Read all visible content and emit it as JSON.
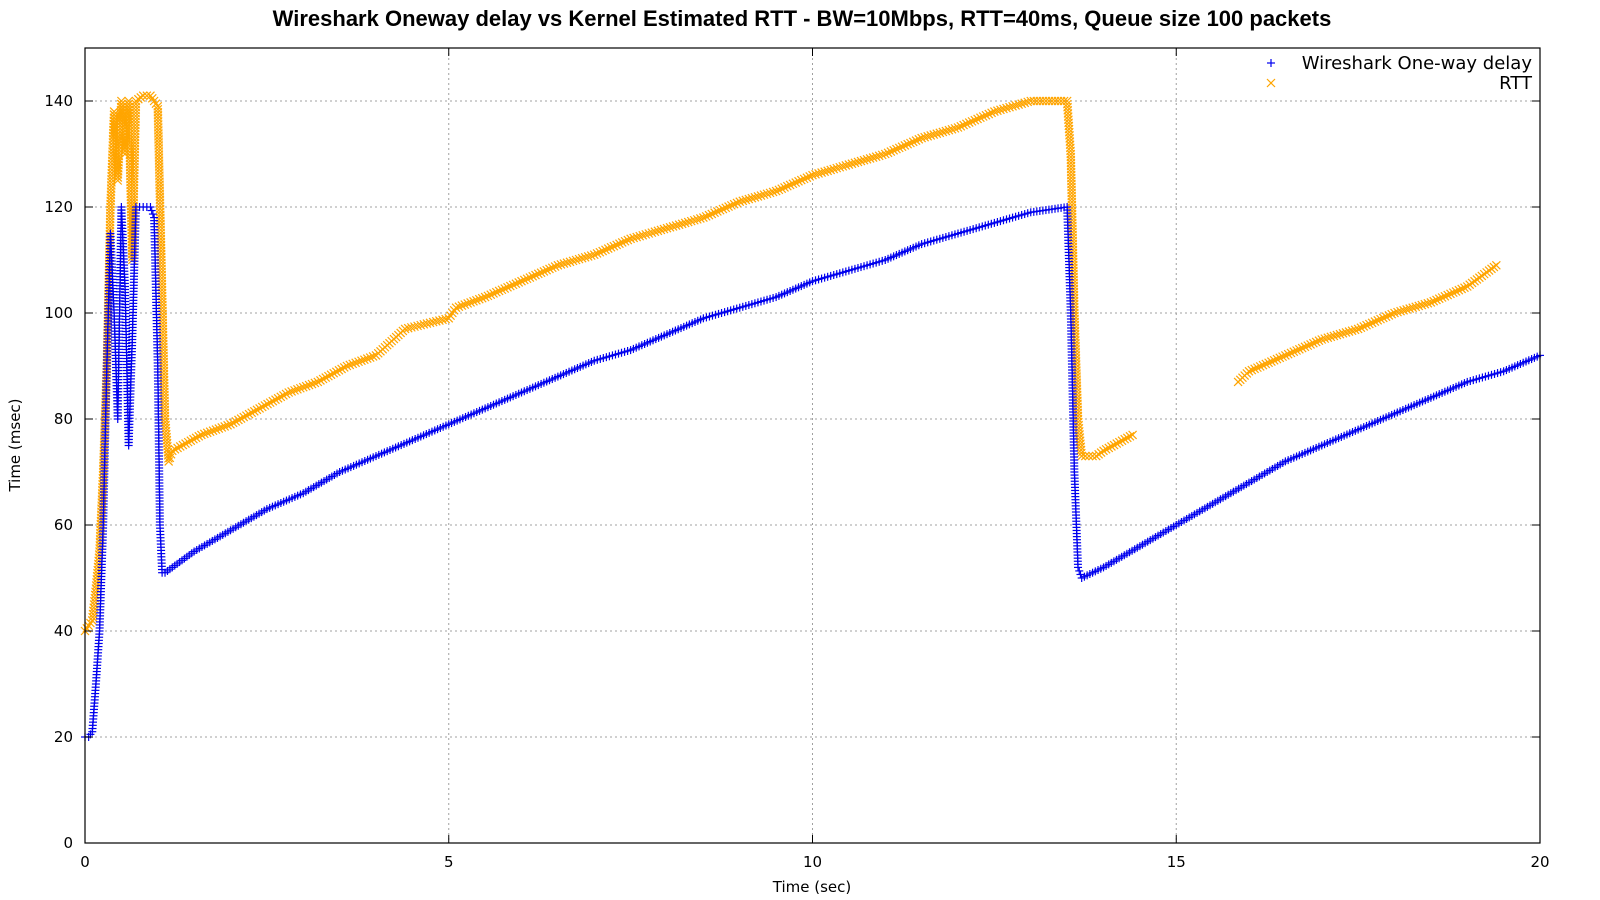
{
  "chart_data": {
    "type": "scatter",
    "title": "Wireshark Oneway delay vs Kernel Estimated RTT - BW=10Mbps, RTT=40ms, Queue size 100 packets",
    "xlabel": "Time (sec)",
    "ylabel": "Time (msec)",
    "xlim": [
      0,
      20
    ],
    "ylim": [
      0,
      140
    ],
    "x_ticks": [
      "0",
      "5",
      "10",
      "15",
      "20"
    ],
    "y_ticks": [
      "0",
      "20",
      "40",
      "60",
      "80",
      "100",
      "120",
      "140"
    ],
    "grid": true,
    "legend_position": "top-right",
    "series": [
      {
        "name": "Wireshark One-way delay",
        "marker": "+",
        "color": "#0000ee",
        "points": [
          [
            0.0,
            20
          ],
          [
            0.05,
            20
          ],
          [
            0.1,
            21
          ],
          [
            0.15,
            30
          ],
          [
            0.2,
            40
          ],
          [
            0.25,
            60
          ],
          [
            0.3,
            90
          ],
          [
            0.35,
            115
          ],
          [
            0.4,
            100
          ],
          [
            0.45,
            80
          ],
          [
            0.5,
            120
          ],
          [
            0.55,
            105
          ],
          [
            0.6,
            75
          ],
          [
            0.65,
            95
          ],
          [
            0.7,
            120
          ],
          [
            0.8,
            120
          ],
          [
            0.9,
            120
          ],
          [
            0.95,
            118
          ],
          [
            1.0,
            90
          ],
          [
            1.03,
            60
          ],
          [
            1.06,
            51
          ],
          [
            1.1,
            51
          ],
          [
            1.5,
            55
          ],
          [
            2.0,
            59
          ],
          [
            2.5,
            63
          ],
          [
            3.0,
            66
          ],
          [
            3.5,
            70
          ],
          [
            4.0,
            73
          ],
          [
            4.5,
            76
          ],
          [
            5.0,
            79
          ],
          [
            5.5,
            82
          ],
          [
            6.0,
            85
          ],
          [
            6.5,
            88
          ],
          [
            7.0,
            91
          ],
          [
            7.5,
            93
          ],
          [
            8.0,
            96
          ],
          [
            8.5,
            99
          ],
          [
            9.0,
            101
          ],
          [
            9.5,
            103
          ],
          [
            10.0,
            106
          ],
          [
            10.5,
            108
          ],
          [
            11.0,
            110
          ],
          [
            11.5,
            113
          ],
          [
            12.0,
            115
          ],
          [
            12.5,
            117
          ],
          [
            13.0,
            119
          ],
          [
            13.5,
            120
          ],
          [
            13.55,
            100
          ],
          [
            13.6,
            70
          ],
          [
            13.65,
            52
          ],
          [
            13.7,
            50
          ],
          [
            14.0,
            52
          ],
          [
            14.5,
            56
          ],
          [
            15.0,
            60
          ],
          [
            15.5,
            64
          ],
          [
            16.0,
            68
          ],
          [
            16.5,
            72
          ],
          [
            17.0,
            75
          ],
          [
            17.5,
            78
          ],
          [
            18.0,
            81
          ],
          [
            18.5,
            84
          ],
          [
            19.0,
            87
          ],
          [
            19.5,
            89
          ],
          [
            20.0,
            92
          ]
        ]
      },
      {
        "name": "RTT",
        "marker": "x",
        "color": "#ffa500",
        "points": [
          [
            0.0,
            40
          ],
          [
            0.1,
            42
          ],
          [
            0.15,
            48
          ],
          [
            0.2,
            55
          ],
          [
            0.25,
            70
          ],
          [
            0.3,
            90
          ],
          [
            0.35,
            120
          ],
          [
            0.4,
            138
          ],
          [
            0.45,
            125
          ],
          [
            0.5,
            140
          ],
          [
            0.55,
            130
          ],
          [
            0.6,
            140
          ],
          [
            0.65,
            110
          ],
          [
            0.7,
            140
          ],
          [
            0.8,
            141
          ],
          [
            0.9,
            141
          ],
          [
            1.0,
            139
          ],
          [
            1.05,
            110
          ],
          [
            1.1,
            80
          ],
          [
            1.15,
            72
          ],
          [
            1.2,
            74
          ],
          [
            1.6,
            77
          ],
          [
            2.0,
            79
          ],
          [
            2.4,
            82
          ],
          [
            2.8,
            85
          ],
          [
            3.2,
            87
          ],
          [
            3.6,
            90
          ],
          [
            4.0,
            92
          ],
          [
            4.4,
            97
          ],
          [
            5.0,
            99
          ],
          [
            5.1,
            101
          ],
          [
            5.5,
            103
          ],
          [
            6.0,
            106
          ],
          [
            6.5,
            109
          ],
          [
            7.0,
            111
          ],
          [
            7.5,
            114
          ],
          [
            8.0,
            116
          ],
          [
            8.5,
            118
          ],
          [
            9.0,
            121
          ],
          [
            9.5,
            123
          ],
          [
            10.0,
            126
          ],
          [
            10.5,
            128
          ],
          [
            11.0,
            130
          ],
          [
            11.5,
            133
          ],
          [
            12.0,
            135
          ],
          [
            12.5,
            138
          ],
          [
            13.0,
            140
          ],
          [
            13.5,
            140
          ],
          [
            13.55,
            130
          ],
          [
            13.6,
            100
          ],
          [
            13.65,
            80
          ],
          [
            13.7,
            73
          ],
          [
            13.9,
            73
          ],
          [
            14.0,
            74
          ],
          [
            14.4,
            77
          ],
          [
            15.85,
            87
          ],
          [
            16.0,
            89
          ],
          [
            16.5,
            92
          ],
          [
            17.0,
            95
          ],
          [
            17.5,
            97
          ],
          [
            18.0,
            100
          ],
          [
            18.5,
            102
          ],
          [
            19.0,
            105
          ],
          [
            19.4,
            109
          ]
        ]
      }
    ]
  }
}
